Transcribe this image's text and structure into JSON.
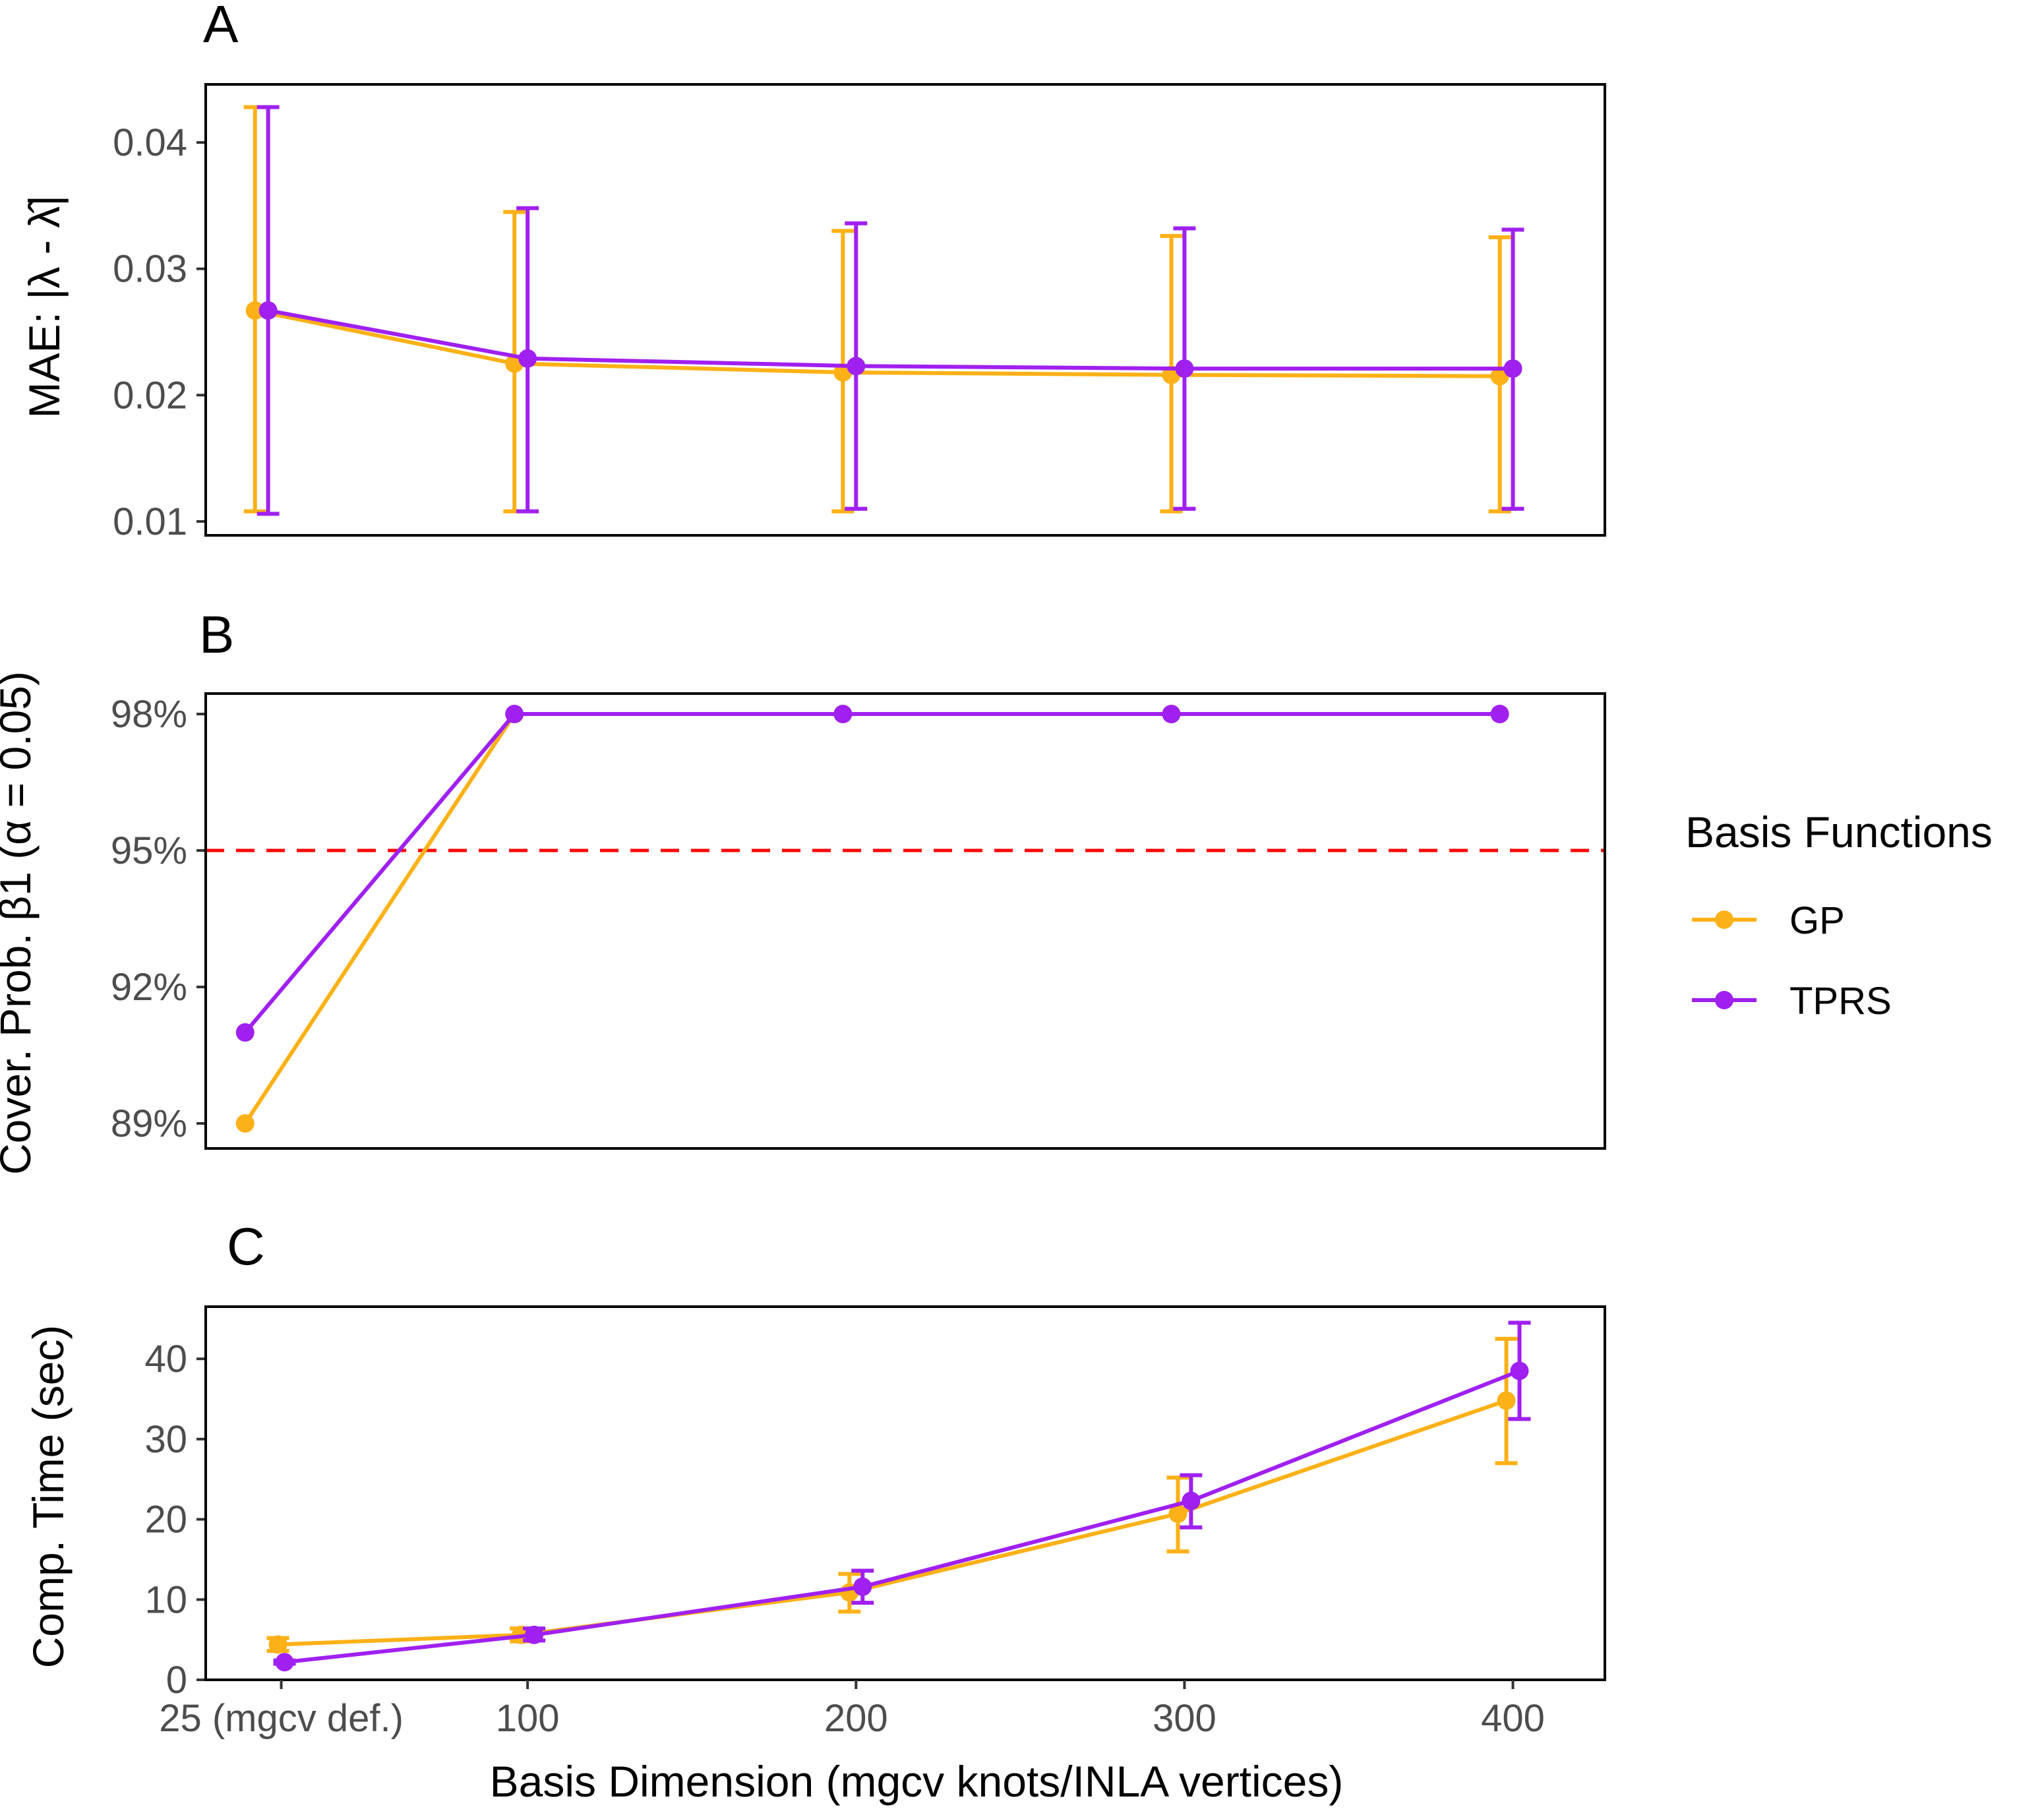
{
  "colors": {
    "GP": "#fbb117",
    "TPRS": "#a020f0",
    "reference": "#ff0000"
  },
  "legend": {
    "title": "Basis Functions",
    "items": [
      {
        "label": "GP",
        "series": "GP"
      },
      {
        "label": "TPRS",
        "series": "TPRS"
      }
    ]
  },
  "x_axis": {
    "title": "Basis Dimension (mgcv knots/INLA vertices)",
    "ticks": [
      {
        "value": 25,
        "label": "25 (mgcv def.)"
      },
      {
        "value": 100,
        "label": "100"
      },
      {
        "value": 200,
        "label": "200"
      },
      {
        "value": 300,
        "label": "300"
      },
      {
        "value": 400,
        "label": "400"
      }
    ]
  },
  "chart_data": [
    {
      "type": "line",
      "panel_label": "A",
      "ylabel": "MAE: |λ - λ̂|",
      "yticks": [
        0.01,
        0.02,
        0.03,
        0.04
      ],
      "ytick_labels": [
        "0.01",
        "0.02",
        "0.03",
        "0.04"
      ],
      "xlim": [
        2,
        428
      ],
      "ylim": [
        0.0089,
        0.0446
      ],
      "error_bars": true,
      "x": [
        25,
        100,
        200,
        300,
        400
      ],
      "series": [
        {
          "name": "GP",
          "x": [
            17,
            96,
            196,
            296,
            396
          ],
          "values": [
            0.0267,
            0.0225,
            0.0218,
            0.0216,
            0.0215
          ],
          "lower": [
            0.0108,
            0.0108,
            0.0108,
            0.0108,
            0.0108
          ],
          "upper": [
            0.0428,
            0.0345,
            0.033,
            0.0326,
            0.0325
          ]
        },
        {
          "name": "TPRS",
          "x": [
            21,
            100,
            200,
            300,
            400
          ],
          "values": [
            0.0267,
            0.0229,
            0.0223,
            0.0221,
            0.0221
          ],
          "lower": [
            0.0106,
            0.0108,
            0.011,
            0.011,
            0.011
          ],
          "upper": [
            0.0428,
            0.0348,
            0.0336,
            0.0332,
            0.0331
          ]
        }
      ]
    },
    {
      "type": "line",
      "panel_label": "B",
      "ylabel": "Cover. Prob. β1 (α = 0.05)",
      "yticks": [
        0.89,
        0.92,
        0.95,
        0.98
      ],
      "ytick_labels": [
        "89%",
        "92%",
        "95%",
        "98%"
      ],
      "xlim": [
        2,
        428
      ],
      "ylim": [
        0.8845,
        0.9845
      ],
      "reference_line": {
        "y": 0.95,
        "style": "dashed"
      },
      "x": [
        25,
        100,
        200,
        300,
        400
      ],
      "series": [
        {
          "name": "GP",
          "x": [
            14,
            96,
            196,
            296,
            396
          ],
          "values": [
            0.89,
            0.98,
            0.98,
            0.98,
            0.98
          ]
        },
        {
          "name": "TPRS",
          "x": [
            14,
            96,
            196,
            296,
            396
          ],
          "values": [
            0.91,
            0.98,
            0.98,
            0.98,
            0.98
          ]
        }
      ]
    },
    {
      "type": "line",
      "panel_label": "C",
      "ylabel": "Comp. Time (sec)",
      "yticks": [
        0,
        10,
        20,
        30,
        40
      ],
      "ytick_labels": [
        "0",
        "10",
        "20",
        "30",
        "40"
      ],
      "xlim": [
        2,
        428
      ],
      "ylim": [
        0,
        46.5
      ],
      "error_bars": true,
      "x": [
        25,
        100,
        200,
        300,
        400
      ],
      "series": [
        {
          "name": "GP",
          "x": [
            24,
            98,
            198,
            298,
            398
          ],
          "values": [
            4.4,
            5.6,
            10.9,
            20.7,
            34.8
          ],
          "lower": [
            3.6,
            4.8,
            8.5,
            16.0,
            27.0
          ],
          "upper": [
            5.2,
            6.4,
            13.2,
            25.2,
            42.5
          ]
        },
        {
          "name": "TPRS",
          "x": [
            26,
            102,
            202,
            302,
            402
          ],
          "values": [
            2.2,
            5.6,
            11.6,
            22.3,
            38.5
          ],
          "lower": [
            2.0,
            4.9,
            9.6,
            19.0,
            32.5
          ],
          "upper": [
            2.4,
            6.4,
            13.6,
            25.5,
            44.5
          ]
        }
      ]
    }
  ]
}
